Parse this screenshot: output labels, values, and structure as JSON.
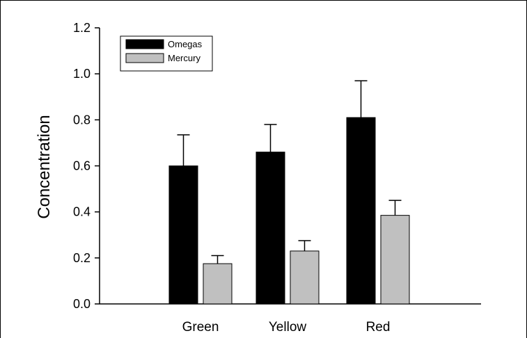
{
  "chart_data": {
    "type": "bar",
    "categories": [
      "Green",
      "Yellow",
      "Red"
    ],
    "series": [
      {
        "name": "Omegas",
        "color": "#000000",
        "values": [
          0.6,
          0.66,
          0.81
        ],
        "errors": [
          0.135,
          0.12,
          0.16
        ]
      },
      {
        "name": "Mercury",
        "color": "#c0c0c0",
        "values": [
          0.175,
          0.23,
          0.385
        ],
        "errors": [
          0.035,
          0.045,
          0.065
        ]
      }
    ],
    "ylabel": "Concentration",
    "xlabel": "",
    "ylim": [
      0,
      1.2
    ],
    "yticks": [
      "0.0",
      "0.2",
      "0.4",
      "0.6",
      "0.8",
      "1.0",
      "1.2"
    ],
    "grid": false,
    "legend_position": "top-left"
  }
}
